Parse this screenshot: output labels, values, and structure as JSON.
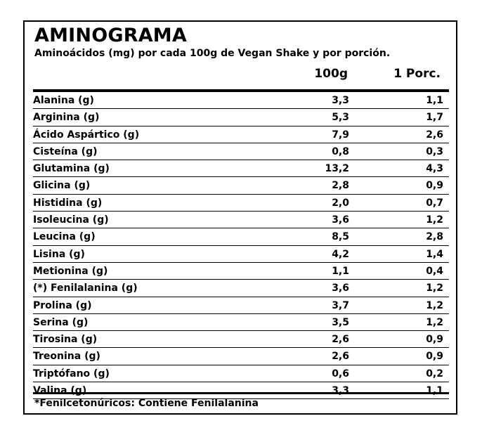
{
  "title": "AMINOGRAMA",
  "subtitle": "Aminoácidos (mg) por cada 100g de Vegan Shake y por porción.",
  "columns": {
    "per100": "100g",
    "perServing": "1 Porc."
  },
  "rows": [
    {
      "name": "Alanina (g)",
      "per100": "3,3",
      "perServing": "1,1"
    },
    {
      "name": "Arginina (g)",
      "per100": "5,3",
      "perServing": "1,7"
    },
    {
      "name": "Ácido Aspártico (g)",
      "per100": "7,9",
      "perServing": "2,6"
    },
    {
      "name": "Cisteína (g)",
      "per100": "0,8",
      "perServing": "0,3"
    },
    {
      "name": "Glutamina (g)",
      "per100": "13,2",
      "perServing": "4,3"
    },
    {
      "name": "Glicina (g)",
      "per100": "2,8",
      "perServing": "0,9"
    },
    {
      "name": "Histidina (g)",
      "per100": "2,0",
      "perServing": "0,7"
    },
    {
      "name": "Isoleucina (g)",
      "per100": "3,6",
      "perServing": "1,2"
    },
    {
      "name": "Leucina (g)",
      "per100": "8,5",
      "perServing": "2,8"
    },
    {
      "name": "Lisina (g)",
      "per100": "4,2",
      "perServing": "1,4"
    },
    {
      "name": "Metionina (g)",
      "per100": "1,1",
      "perServing": "0,4"
    },
    {
      "name": "(*) Fenilalanina (g)",
      "per100": "3,6",
      "perServing": "1,2"
    },
    {
      "name": "Prolina (g)",
      "per100": "3,7",
      "perServing": "1,2"
    },
    {
      "name": "Serina (g)",
      "per100": "3,5",
      "perServing": "1,2"
    },
    {
      "name": "Tirosina (g)",
      "per100": "2,6",
      "perServing": "0,9"
    },
    {
      "name": "Treonina (g)",
      "per100": "2,6",
      "perServing": "0,9"
    },
    {
      "name": "Triptófano (g)",
      "per100": "0,6",
      "perServing": "0,2"
    },
    {
      "name": "Valina (g)",
      "per100": "3,3",
      "perServing": "1,1"
    }
  ],
  "footnote": "*Fenilcetonúricos: Contiene Fenilalanina"
}
